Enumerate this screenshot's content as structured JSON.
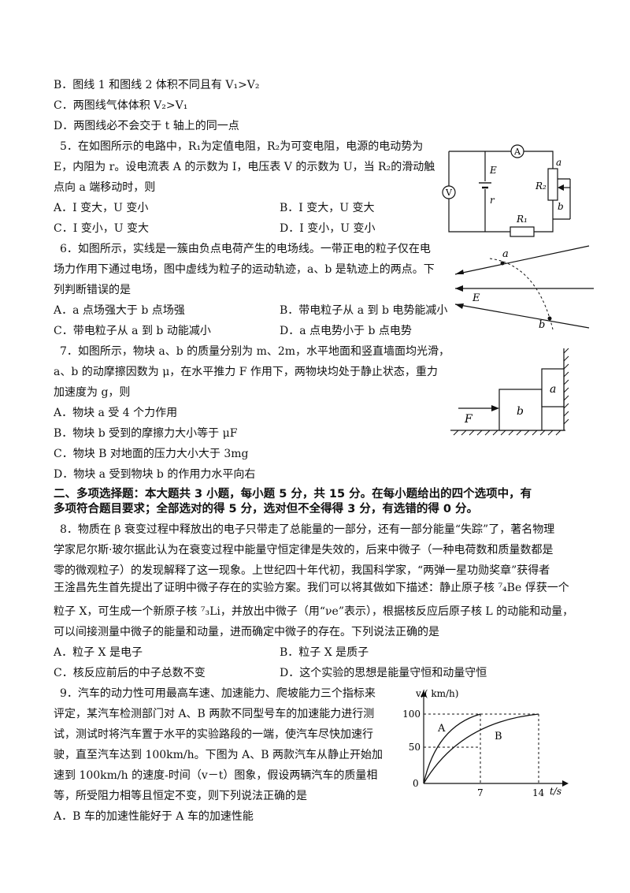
{
  "lines": {
    "q4b": "B．图线 1 和图线 2 体积不同且有 V₁>V₂",
    "q4c": "C．两图线气体体积 V₂>V₁",
    "q4d": "D．两图线必不会交于 t 轴上的同一点",
    "q5_1": "5．在如图所示的电路中，R₁为定值电阻，R₂为可变电阻，电源的电动势为",
    "q5_2": "E，内阻为 r。设电流表 A 的示数为 I，电压表 V 的示数为 U，当 R₂的滑动触",
    "q5_3": "点向 a 端移动时，则",
    "q5_A": "A．I 变大，U 变小",
    "q5_B": "B．I 变大，U 变大",
    "q5_C": "C．I 变小，U 变大",
    "q5_D": "D．I 变小，U 变小",
    "q6_1": "6．如图所示，实线是一簇由负点电荷产生的电场线。一带正电的粒子仅在电",
    "q6_2": "场力作用下通过电场，图中虚线为粒子的运动轨迹，a、b 是轨迹上的两点。下",
    "q6_3": "列判断错误的是",
    "q6_A": "A．a 点场强大于 b 点场强",
    "q6_B": "B．带电粒子从 a 到 b 电势能减小",
    "q6_C": "C．带电粒子从 a 到 b 动能减小",
    "q6_D": "D．a 点电势小于 b 点电势",
    "q7_1": "7．如图所示，物块 a、b 的质量分别为 m、2m，水平地面和竖直墙面均光滑，",
    "q7_2": "a、b 的动摩擦因数为 μ，在水平推力 F 作用下，两物块均处于静止状态，重力",
    "q7_3": "加速度为 g，则",
    "q7_A": "A．物块 a 受 4 个力作用",
    "q7_B": "B．物块 b 受到的摩擦力大小等于 μF",
    "q7_C": "C．物块 B 对地面的压力大小大于 3mg",
    "q7_D": "D．物块 a 受到物块 b 的作用力水平向右",
    "sec2_1": "二、多项选择题：本大题共 3 小题，每小题 5 分，共 15 分。在每小题给出的四个选项中，有",
    "sec2_2": "多项符合题目要求；全部选对的得 5 分，选对但不全得得 3 分，有选错的得 0 分。",
    "q8_1": "8．物质在 β 衰变过程中释放出的电子只带走了总能量的一部分，还有一部分能量“失踪”了，著名物理",
    "q8_2": "学家尼尔斯·玻尔据此认为在衰变过程中能量守恒定律是失效的，后来中微子（一种电荷数和质量数都是",
    "q8_3": "零的微观粒子）的发现解释了这一现象。上世纪四十年代初，我国科学家，“两弹一星功勋奖章”获得者",
    "q8_4": "王淦昌先生首先提出了证明中微子存在的实验方案。我们可以将其做如下描述：静止原子核 ⁷₄Be 俘获一个",
    "q8_5": "粒子 X，可生成一个新原子核 ⁷₃Li，并放出中微子（用“νe”表示），根据核反应后原子核 L 的动能和动量，",
    "q8_6": "可以间接测量中微子的能量和动量，进而确定中微子的存在。下列说法正确的是",
    "q8_A": "A．粒子 X 是电子",
    "q8_B": "B．粒子 X 是质子",
    "q8_C": "C．核反应前后的中子总数不变",
    "q8_D": "D．这个实验的思想是能量守恒和动量守恒",
    "q9_1": "9．汽车的动力性可用最高车速、加速能力、爬坡能力三个指标来",
    "q9_2": "评定，某汽车检测部门对 A、B 两款不同型号车的加速能力进行测",
    "q9_3": "试，测试时将汽车置于水平的实验路段的一端，使汽车尽快加速行",
    "q9_4": "驶，直至汽车达到 100km/h。下图为 A、B 两款汽车从静止开始加",
    "q9_5": "速到 100km/h 的速度-时间（v－t）图象，假设两辆汽车的质量相",
    "q9_6": "等，所受阻力相等且恒定不变，则下列说法正确的是",
    "q9_A": "A．B 车的加速性能好于 A 车的加速性能"
  },
  "fig_circuit": {
    "ammeter": "A",
    "voltmeter": "V",
    "emf": "E",
    "r": "r",
    "r2": "R₂",
    "r1": "R₁",
    "a": "a",
    "b": "b"
  },
  "fig_field": {
    "a": "a",
    "b": "b",
    "E": "E"
  },
  "fig_blocks": {
    "a": "a",
    "b": "b",
    "F": "F"
  },
  "fig_vt": {
    "ylabel": "v/( km/h)",
    "xlabel": "t/s",
    "y100": "100",
    "y50": "50",
    "origin": "0",
    "x7": "7",
    "x14": "14",
    "curveA": "A",
    "curveB": "B"
  }
}
